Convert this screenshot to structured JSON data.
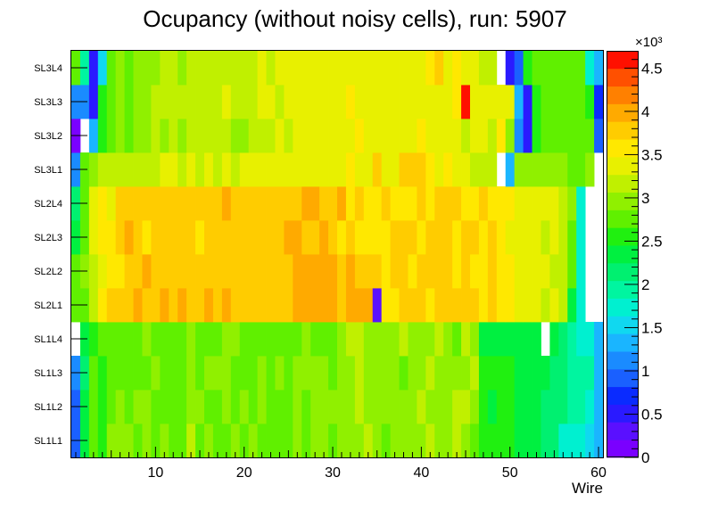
{
  "chart_data": {
    "type": "heatmap",
    "title": "Ocupancy (without noisy cells), run: 5907",
    "xlabel": "Wire",
    "ylabel": "",
    "xlim": [
      0.5,
      60.5
    ],
    "x_ticks": [
      10,
      20,
      30,
      40,
      50,
      60
    ],
    "y_categories": [
      "SL1L1",
      "SL1L2",
      "SL1L3",
      "SL1L4",
      "SL2L1",
      "SL2L2",
      "SL2L3",
      "SL2L4",
      "SL3L1",
      "SL3L2",
      "SL3L3",
      "SL3L4"
    ],
    "zlim": [
      0,
      4700
    ],
    "z_ticks": [
      "0",
      "0.5",
      "1",
      "1.5",
      "2",
      "2.5",
      "3",
      "3.5",
      "4",
      "4.5"
    ],
    "z_multiplier_label": "×10³",
    "palette": [
      "#7a00ff",
      "#5a10ff",
      "#2a1aff",
      "#0a2bff",
      "#1a60ff",
      "#1a8bff",
      "#1ab5ff",
      "#10d8f0",
      "#00f0d0",
      "#00f5a0",
      "#00f070",
      "#00f040",
      "#20f010",
      "#60f000",
      "#90f000",
      "#c0f000",
      "#e8f000",
      "#ffe800",
      "#ffcc00",
      "#ffaa00",
      "#ff8000",
      "#ff5000",
      "#ff1000"
    ],
    "grid": false,
    "legend": "color scale at right",
    "values": [
      [
        1000,
        2300,
        2800,
        2600,
        2900,
        2900,
        2900,
        2800,
        2900,
        2800,
        2900,
        2800,
        2800,
        3100,
        2800,
        2900,
        2800,
        2700,
        2900,
        2800,
        2900,
        2800,
        2800,
        2800,
        2800,
        2900,
        2800,
        3000,
        2900,
        2800,
        2900,
        3000,
        2900,
        3200,
        3000,
        2800,
        2900,
        3000,
        3000,
        2900,
        3100,
        3000,
        2900,
        3200,
        3000,
        2800,
        2500,
        2500,
        2500,
        2500,
        2300,
        2300,
        2300,
        2200,
        2200,
        1800,
        1800,
        1800,
        1500,
        1300
      ],
      [
        1000,
        2300,
        2700,
        2600,
        2800,
        2900,
        2800,
        2900,
        2900,
        2800,
        2800,
        2800,
        2800,
        2900,
        2900,
        2800,
        2800,
        2900,
        2800,
        2900,
        2800,
        2900,
        2800,
        2800,
        2800,
        2900,
        2800,
        3000,
        2900,
        2900,
        2900,
        3000,
        3100,
        3000,
        3000,
        2900,
        3000,
        3000,
        3000,
        3100,
        3000,
        2900,
        3000,
        3100,
        3200,
        2900,
        2500,
        2400,
        2500,
        2500,
        2300,
        2300,
        2300,
        2200,
        2200,
        2100,
        2000,
        2000,
        1800,
        1400
      ],
      [
        1100,
        2200,
        2700,
        2600,
        2800,
        2800,
        2800,
        2800,
        2800,
        2900,
        2800,
        2800,
        2800,
        2900,
        2800,
        2900,
        2900,
        2900,
        2800,
        2800,
        2800,
        2900,
        2800,
        2900,
        2800,
        2900,
        2900,
        2900,
        2900,
        2800,
        2900,
        3000,
        3100,
        3000,
        3000,
        2900,
        3000,
        2800,
        3000,
        3000,
        3100,
        3000,
        2900,
        3000,
        3000,
        3100,
        2500,
        2500,
        2500,
        2500,
        2300,
        2300,
        2400,
        2400,
        2200,
        2100,
        2000,
        2000,
        1900,
        1300
      ],
      [
        -1,
        2300,
        2600,
        2700,
        2800,
        2700,
        2700,
        2700,
        2900,
        2800,
        2800,
        2700,
        2700,
        2900,
        2700,
        2700,
        2700,
        2900,
        2900,
        2700,
        2700,
        2700,
        2700,
        2800,
        2800,
        2800,
        2900,
        2700,
        2700,
        2800,
        2900,
        3100,
        3100,
        3000,
        2900,
        2900,
        2900,
        3100,
        2900,
        3000,
        2900,
        3100,
        2900,
        2700,
        3100,
        3000,
        2400,
        2400,
        2400,
        2400,
        2400,
        2400,
        2400,
        -1,
        2300,
        2200,
        2000,
        1800,
        1800,
        1300
      ],
      [
        2800,
        2700,
        3100,
        3500,
        3700,
        3800,
        3800,
        3900,
        3800,
        3800,
        3900,
        3800,
        3900,
        3800,
        3800,
        3900,
        3800,
        3900,
        3800,
        3800,
        3800,
        3800,
        3800,
        3800,
        3800,
        3900,
        4000,
        4000,
        4000,
        3900,
        3800,
        3900,
        3900,
        3900,
        300,
        3500,
        3500,
        3800,
        3800,
        3800,
        3500,
        3800,
        3800,
        3700,
        3800,
        3800,
        3500,
        3700,
        3600,
        3600,
        3300,
        3400,
        3300,
        3200,
        3300,
        3100,
        2300,
        1700,
        -1,
        -1
      ],
      [
        2700,
        2900,
        3100,
        3300,
        3500,
        3600,
        3800,
        3800,
        3900,
        3800,
        3800,
        3800,
        3800,
        3800,
        3700,
        3800,
        3800,
        3800,
        3800,
        3800,
        3800,
        3800,
        3800,
        3800,
        3800,
        4000,
        4000,
        4000,
        4000,
        3900,
        3800,
        3900,
        3800,
        3700,
        3800,
        3500,
        3800,
        3700,
        3600,
        3800,
        3800,
        3800,
        3700,
        3500,
        3700,
        3600,
        3500,
        3700,
        3500,
        3500,
        3400,
        3400,
        3300,
        3300,
        3200,
        3200,
        2800,
        1800,
        -1,
        -1
      ],
      [
        2400,
        2800,
        3300,
        3500,
        3500,
        3800,
        3900,
        3800,
        3500,
        3800,
        3800,
        3800,
        3800,
        3800,
        3600,
        3800,
        3800,
        3700,
        3800,
        3800,
        3800,
        3800,
        3800,
        3800,
        3900,
        4000,
        3800,
        3800,
        3900,
        3800,
        3600,
        3800,
        3500,
        3500,
        3500,
        3600,
        3800,
        3800,
        3700,
        3600,
        3800,
        3700,
        3800,
        3600,
        3800,
        3800,
        3600,
        3700,
        3500,
        3400,
        3400,
        3400,
        3300,
        3200,
        3300,
        3100,
        2700,
        1700,
        -1,
        -1
      ],
      [
        2200,
        2700,
        3300,
        3500,
        3400,
        3800,
        3800,
        3800,
        3800,
        3800,
        3800,
        3800,
        3800,
        3800,
        3800,
        3800,
        3800,
        3900,
        3800,
        3800,
        3800,
        3800,
        3800,
        3800,
        3800,
        3800,
        3900,
        3900,
        3700,
        3800,
        3900,
        3600,
        3700,
        3600,
        3500,
        3800,
        3600,
        3600,
        3500,
        3800,
        3600,
        3800,
        3700,
        3800,
        3600,
        3600,
        3800,
        3500,
        3600,
        3500,
        3400,
        3400,
        3300,
        3300,
        3300,
        3200,
        3000,
        1800,
        -1,
        -1
      ],
      [
        1200,
        2700,
        3000,
        3100,
        3100,
        3200,
        3200,
        3100,
        3200,
        3200,
        3300,
        3300,
        3200,
        3300,
        3200,
        3300,
        3200,
        3400,
        3200,
        3300,
        3300,
        3300,
        3300,
        3400,
        3300,
        3300,
        3300,
        3400,
        3400,
        3400,
        3300,
        3500,
        3300,
        3300,
        3700,
        3300,
        3400,
        3700,
        3700,
        3700,
        3500,
        3400,
        3500,
        3300,
        3300,
        3100,
        3100,
        3100,
        -1,
        1300,
        3000,
        3000,
        3000,
        2900,
        2900,
        3000,
        2800,
        2800,
        3000,
        -1
      ],
      [
        100,
        -1,
        1300,
        2500,
        2800,
        2900,
        2800,
        3000,
        2900,
        3100,
        3000,
        3200,
        3000,
        3100,
        3100,
        3100,
        3100,
        3100,
        3000,
        3000,
        3200,
        3100,
        3200,
        3300,
        3100,
        3300,
        3400,
        3400,
        3300,
        3400,
        3300,
        3400,
        3500,
        3300,
        3400,
        3300,
        3400,
        3300,
        3300,
        3500,
        3300,
        3400,
        3400,
        3300,
        3200,
        3300,
        3400,
        3100,
        3500,
        3000,
        1200,
        500,
        2500,
        2700,
        2700,
        2800,
        2700,
        2800,
        2700,
        1000
      ],
      [
        1200,
        1200,
        500,
        2500,
        2800,
        2900,
        2800,
        3000,
        2900,
        3100,
        3100,
        3200,
        3200,
        3100,
        3200,
        3100,
        3200,
        3300,
        3100,
        3200,
        3100,
        3300,
        3300,
        3200,
        3300,
        3300,
        3300,
        3400,
        3300,
        3400,
        3300,
        3600,
        3300,
        3400,
        3400,
        3400,
        3400,
        3400,
        3400,
        3300,
        3400,
        3300,
        3400,
        3500,
        4500,
        3400,
        3400,
        3400,
        3400,
        3400,
        1400,
        500,
        2500,
        2700,
        2700,
        2800,
        2700,
        2800,
        2600,
        800
      ],
      [
        2700,
        1900,
        500,
        1500,
        2800,
        2900,
        2800,
        3000,
        2900,
        3000,
        3100,
        3200,
        3000,
        3100,
        3100,
        3200,
        3200,
        3200,
        3100,
        3100,
        3200,
        3300,
        3200,
        3300,
        3300,
        3300,
        3300,
        3300,
        3300,
        3400,
        3300,
        3300,
        3400,
        3300,
        3400,
        3400,
        3300,
        3300,
        3300,
        3300,
        3500,
        3800,
        3400,
        3500,
        3400,
        3300,
        3200,
        3100,
        -1,
        500,
        1000,
        2600,
        2700,
        2800,
        2800,
        2800,
        2700,
        2800,
        1800,
        1400
      ]
    ]
  }
}
